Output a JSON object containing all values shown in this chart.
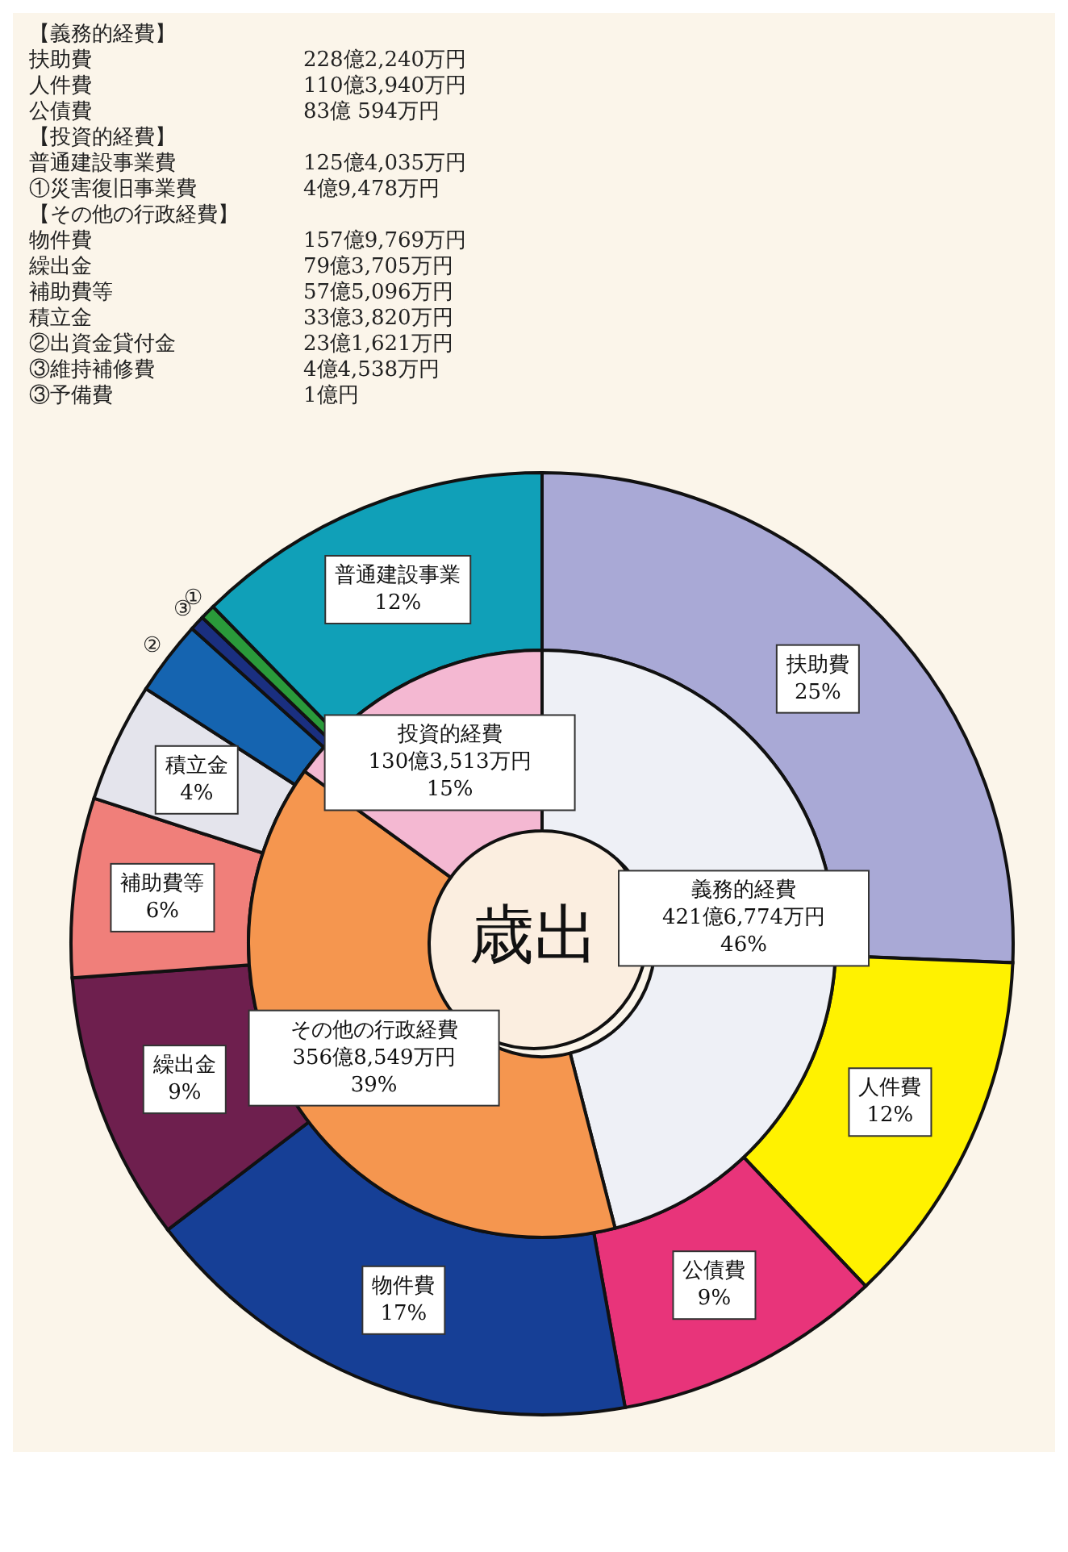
{
  "chart_data": [
    {
      "type": "donut",
      "title": "歳出",
      "categories": [
        "義務的経費",
        "その他の行政経費",
        "投資的経費"
      ],
      "values": [
        46,
        39,
        15
      ],
      "colors": [
        "#eef0f6",
        "#f5964f",
        "#f4b8d2"
      ],
      "value_labels": [
        "421億6,774万円\n46%",
        "356億8,549万円\n39%",
        "130億3,513万円\n15%"
      ]
    },
    {
      "type": "donut",
      "categories": [
        "扶助費",
        "人件費",
        "公債費",
        "物件費",
        "繰出金",
        "補助費等",
        "積立金",
        "②",
        "③",
        null,
        "①",
        "普通建設事業"
      ],
      "values": [
        25,
        12,
        9,
        17,
        9,
        6,
        4,
        2.5,
        0.5,
        null,
        0.5,
        12
      ],
      "colors": [
        "#a9a9d6",
        "#fff200",
        "#e8347a",
        "#163f96",
        "#6e1f4e",
        "#f07f7a",
        "#e4e4ec",
        "#1564b0",
        "#1a2f80",
        "#333366",
        "#2a9a3a",
        "#10a0b8"
      ],
      "value_labels": [
        "25%",
        "12%",
        "9%",
        "17%",
        "9%",
        "6%",
        "4%",
        null,
        null,
        null,
        null,
        "12%"
      ],
      "annotations": [
        "【義務的経費】",
        "扶助費\t228億2,240万円",
        "人件費\t110億3,940万円",
        "公債費\t83億 594万円",
        "【投資的経費】",
        "普通建設事業費\t125億4,035万円",
        "①災害復旧事業費\t4億9,478万円",
        "【その他の行政経費】",
        "物件費\t157億9,769万円",
        "繰出金\t79億3,705万円",
        "補助費等\t57億5,096万円",
        "積立金\t33億3,820万円",
        "②出資金貸付金\t23億1,621万円",
        "③維持補修費\t4億4,538万円",
        "③予備費\t1億円"
      ]
    }
  ]
}
